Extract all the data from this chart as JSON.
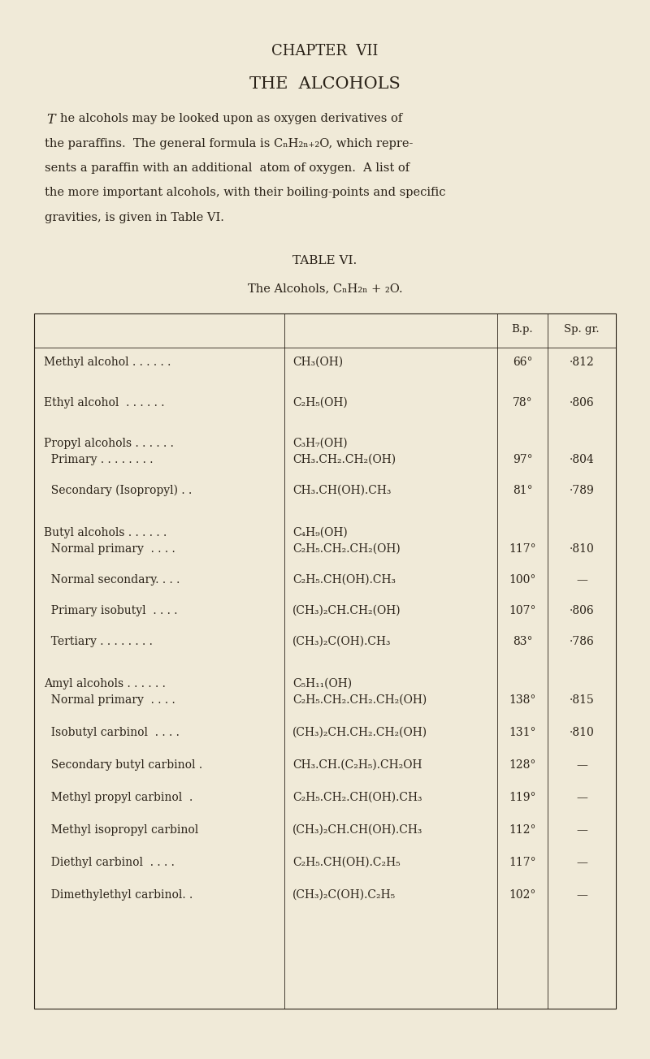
{
  "bg_color": "#f0ead8",
  "text_color": "#2a2218",
  "chapter_heading": "CHAPTER  VII",
  "title": "THE  ALCOHOLS",
  "intro_line1": "The alcohols may be looked upon as oxygen derivatives of",
  "intro_line1_cap": "T",
  "intro_line1_rest": "he alcohols may be looked upon as oxygen derivatives of",
  "intro_lines": [
    "The alcohols may be looked upon as oxygen derivatives of",
    "the paraffins.  The general formula is CₙH₂ₙ₊₂O, which repre-",
    "sents a paraffin with an additional  atom of oxygen.  A list of",
    "the more important alcohols, with their boiling-points and specific",
    "gravities, is given in Table VI."
  ],
  "table_title1": "TABLE VI.",
  "table_title2": "The Alcohols, CₙH₂ₙ + ₂O.",
  "col_header_bp": "B.p.",
  "col_header_sg": "Sp. gr.",
  "rows": [
    {
      "name": "Methyl alcohol . . . . . .",
      "formula": "CH₃(OH)",
      "bp": "66°",
      "sg": "·812",
      "group_header": false
    },
    {
      "name": "Ethyl alcohol  . . . . . .",
      "formula": "C₂H₅(OH)",
      "bp": "78°",
      "sg": "·806",
      "group_header": false
    },
    {
      "name": "Propyl alcohols . . . . . .",
      "formula": "C₃H₇(OH)",
      "bp": "",
      "sg": "",
      "group_header": true
    },
    {
      "name": "  Primary . . . . . . . .",
      "formula": "CH₃.CH₂.CH₂(OH)",
      "bp": "97°",
      "sg": "·804",
      "group_header": false
    },
    {
      "name": "  Secondary (Isopropyl) . .",
      "formula": "CH₃.CH(OH).CH₃",
      "bp": "81°",
      "sg": "·789",
      "group_header": false
    },
    {
      "name": "Butyl alcohols . . . . . .",
      "formula": "C₄H₉(OH)",
      "bp": "",
      "sg": "",
      "group_header": true
    },
    {
      "name": "  Normal primary  . . . .",
      "formula": "C₂H₅.CH₂.CH₂(OH)",
      "bp": "117°",
      "sg": "·810",
      "group_header": false
    },
    {
      "name": "  Normal secondary. . . .",
      "formula": "C₂H₅.CH(OH).CH₃",
      "bp": "100°",
      "sg": "—",
      "group_header": false
    },
    {
      "name": "  Primary isobutyl  . . . .",
      "formula": "(CH₃)₂CH.CH₂(OH)",
      "bp": "107°",
      "sg": "·806",
      "group_header": false
    },
    {
      "name": "  Tertiary . . . . . . . .",
      "formula": "(CH₃)₂C(OH).CH₃",
      "bp": "83°",
      "sg": "·786",
      "group_header": false
    },
    {
      "name": "Amyl alcohols . . . . . .",
      "formula": "C₅H₁₁(OH)",
      "bp": "",
      "sg": "",
      "group_header": true
    },
    {
      "name": "  Normal primary  . . . .",
      "formula": "C₂H₅.CH₂.CH₂.CH₂(OH)",
      "bp": "138°",
      "sg": "·815",
      "group_header": false
    },
    {
      "name": "  Isobutyl carbinol  . . . .",
      "formula": "(CH₃)₂CH.CH₂.CH₂(OH)",
      "bp": "131°",
      "sg": "·810",
      "group_header": false
    },
    {
      "name": "  Secondary butyl carbinol .",
      "formula": "CH₃.CH.(C₂H₅).CH₂OH",
      "bp": "128°",
      "sg": "—",
      "group_header": false
    },
    {
      "name": "  Methyl propyl carbinol  .",
      "formula": "C₂H₅.CH₂.CH(OH).CH₃",
      "bp": "119°",
      "sg": "—",
      "group_header": false
    },
    {
      "name": "  Methyl isopropyl carbinol",
      "formula": "(CH₃)₂CH.CH(OH).CH₃",
      "bp": "112°",
      "sg": "—",
      "group_header": false
    },
    {
      "name": "  Diethyl carbinol  . . . .",
      "formula": "C₂H₅.CH(OH).C₂H₅",
      "bp": "117°",
      "sg": "—",
      "group_header": false
    },
    {
      "name": "  Dimethylethyl carbinol. .",
      "formula": "(CH₃)₂C(OH).C₂H₅",
      "bp": "102°",
      "sg": "—",
      "group_header": false
    }
  ],
  "row_spacings": [
    0.5,
    0.5,
    0.2,
    0.38,
    0.52,
    0.2,
    0.38,
    0.38,
    0.38,
    0.52,
    0.2,
    0.4,
    0.4,
    0.4,
    0.4,
    0.4,
    0.4,
    0.4
  ]
}
